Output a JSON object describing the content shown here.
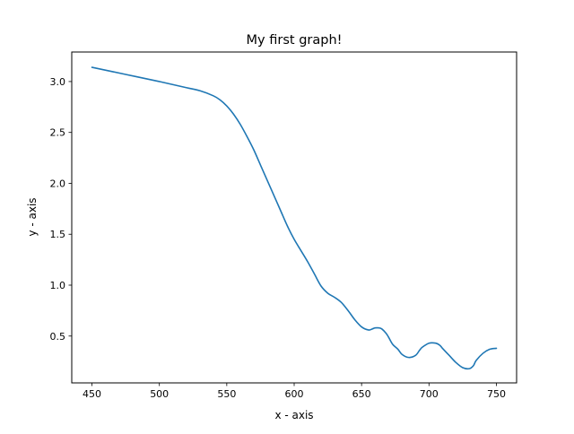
{
  "chart_data": {
    "type": "line",
    "title": "My first graph!",
    "xlabel": "x - axis",
    "ylabel": "y - axis",
    "xlim": [
      435,
      765
    ],
    "ylim": [
      0.04,
      3.29
    ],
    "grid": false,
    "x_ticks": [
      450,
      500,
      550,
      600,
      650,
      700,
      750
    ],
    "y_ticks": [
      0.5,
      1.0,
      1.5,
      2.0,
      2.5,
      3.0
    ],
    "y_tick_labels": [
      "0.5",
      "1.0",
      "1.5",
      "2.0",
      "2.5",
      "3.0"
    ],
    "series": [
      {
        "color": "#1f77b4",
        "x": [
          450,
          475,
          500,
          520,
          530,
          540,
          545,
          550,
          555,
          560,
          565,
          570,
          575,
          580,
          585,
          590,
          595,
          600,
          605,
          610,
          615,
          620,
          625,
          630,
          635,
          640,
          645,
          650,
          655,
          658,
          660,
          663,
          665,
          668,
          670,
          673,
          677,
          680,
          685,
          690,
          693,
          695,
          700,
          705,
          708,
          710,
          715,
          720,
          725,
          730,
          733,
          735,
          740,
          745,
          750
        ],
        "y": [
          3.14,
          3.07,
          3.0,
          2.94,
          2.91,
          2.86,
          2.82,
          2.76,
          2.68,
          2.58,
          2.46,
          2.33,
          2.18,
          2.03,
          1.88,
          1.73,
          1.58,
          1.45,
          1.34,
          1.23,
          1.11,
          0.99,
          0.92,
          0.88,
          0.83,
          0.75,
          0.66,
          0.59,
          0.56,
          0.57,
          0.58,
          0.58,
          0.57,
          0.53,
          0.49,
          0.42,
          0.37,
          0.32,
          0.29,
          0.31,
          0.36,
          0.39,
          0.43,
          0.43,
          0.41,
          0.38,
          0.31,
          0.24,
          0.19,
          0.18,
          0.21,
          0.26,
          0.33,
          0.37,
          0.38
        ]
      }
    ]
  }
}
